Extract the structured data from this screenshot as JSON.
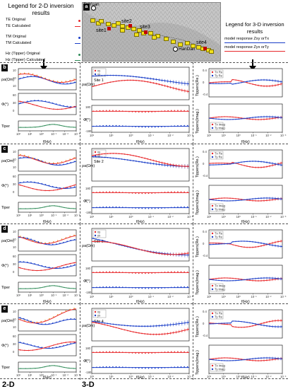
{
  "legend2d": {
    "title": "Legend for 2-D inversion results",
    "items": [
      {
        "label": "TE Original",
        "color": "#e8282b"
      },
      {
        "label": "TE Calculated",
        "color": "#e8282b"
      },
      {
        "label": "TM Original",
        "color": "#1a3ec8"
      },
      {
        "label": "TM Calculated",
        "color": "#1a3ec8"
      },
      {
        "label": "Hz (Tipper) Original",
        "color": "#2e8b57"
      },
      {
        "label": "Hz (Tipper) Calculated",
        "color": "#2e8b57"
      }
    ]
  },
  "legend3d": {
    "title": "Legend for 3-D inversion results",
    "items": [
      {
        "label": "model response Zxy orTx",
        "color": "#1a3ec8"
      },
      {
        "label": "model response Zyx orTy",
        "color": "#e8282b"
      }
    ]
  },
  "map": {
    "panel_letter": "a",
    "cities": [
      "TaiYuan",
      "HanDan"
    ],
    "sites": [
      "site1",
      "site2",
      "site3",
      "site4"
    ]
  },
  "panels": [
    {
      "letter": "b",
      "site": "Site 1"
    },
    {
      "letter": "c",
      "site": "Site 2"
    },
    {
      "letter": "d",
      "site": "Site 3"
    },
    {
      "letter": "e",
      "site": "Site 4"
    }
  ],
  "axes": {
    "rho": "ρa(Ωm)",
    "phi": "Φ(°)",
    "tipper": "Tiper",
    "freq": "f(Hz)",
    "tipper_re": "Tippers(Re.)",
    "tipper_im": "Tippers(Imag.)",
    "rho_ticks": [
      "10",
      "10",
      "10"
    ],
    "phi_ticks_2d": [
      "60",
      "30",
      "0"
    ],
    "phi_ticks_3d": [
      "180",
      "0",
      "-180"
    ],
    "tip_ticks": [
      "0.4",
      "0",
      "-0.4"
    ],
    "freq_ticks": [
      "10²",
      "10¹",
      "10⁰",
      "10⁻¹",
      "10⁻²",
      "10⁻³"
    ],
    "xy": "xy",
    "yx": "yx",
    "tx_re": "Tx Re",
    "ty_re": "Ty Re",
    "tx_im": "Tx imag",
    "ty_im": "Ty imag"
  },
  "bottom_labels": [
    "2-D",
    "3-D"
  ],
  "colors": {
    "red": "#e8282b",
    "blue": "#1a3ec8",
    "green": "#2e8b57",
    "orange": "#e89a2b"
  }
}
